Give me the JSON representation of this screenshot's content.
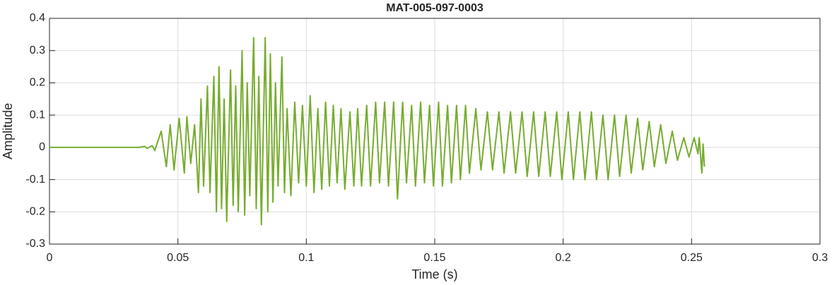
{
  "chart_data": {
    "type": "line",
    "title": "MAT-005-097-0003",
    "x_label": "Time (s)",
    "y_label": "Amplitude",
    "color": "#77ac30",
    "grid": true,
    "xlim": [
      0,
      0.3
    ],
    "xticks": [
      0,
      0.05,
      0.1,
      0.15,
      0.2,
      0.25,
      0.3
    ],
    "ylim": [
      -0.3,
      0.4
    ],
    "yticks": [
      -0.3,
      -0.2,
      -0.1,
      0,
      0.1,
      0.2,
      0.3,
      0.4
    ],
    "x": [
      0,
      0.035,
      0.037,
      0.038,
      0.04,
      0.041,
      0.0435,
      0.0455,
      0.047,
      0.0485,
      0.0505,
      0.0525,
      0.0535,
      0.055,
      0.0565,
      0.058,
      0.059,
      0.06,
      0.0615,
      0.0625,
      0.064,
      0.065,
      0.066,
      0.067,
      0.068,
      0.069,
      0.0705,
      0.0715,
      0.0725,
      0.0735,
      0.075,
      0.076,
      0.077,
      0.078,
      0.0795,
      0.0805,
      0.0815,
      0.0825,
      0.084,
      0.085,
      0.086,
      0.087,
      0.088,
      0.089,
      0.0905,
      0.0915,
      0.0925,
      0.094,
      0.0955,
      0.097,
      0.0985,
      0.1,
      0.1015,
      0.103,
      0.1045,
      0.106,
      0.1075,
      0.109,
      0.1105,
      0.112,
      0.1135,
      0.115,
      0.117,
      0.1185,
      0.12,
      0.1215,
      0.1235,
      0.125,
      0.127,
      0.1285,
      0.1305,
      0.132,
      0.134,
      0.1355,
      0.1375,
      0.139,
      0.141,
      0.1425,
      0.1445,
      0.146,
      0.148,
      0.1495,
      0.1515,
      0.153,
      0.155,
      0.1565,
      0.1585,
      0.16,
      0.162,
      0.1635,
      0.166,
      0.168,
      0.1705,
      0.1725,
      0.175,
      0.177,
      0.1795,
      0.1815,
      0.184,
      0.186,
      0.1885,
      0.1905,
      0.193,
      0.195,
      0.1975,
      0.1995,
      0.202,
      0.204,
      0.2065,
      0.2085,
      0.211,
      0.213,
      0.2155,
      0.2175,
      0.22,
      0.222,
      0.2245,
      0.2265,
      0.229,
      0.231,
      0.2335,
      0.2355,
      0.238,
      0.24,
      0.2425,
      0.2445,
      0.247,
      0.249,
      0.251,
      0.2525,
      0.253,
      0.254,
      0.2545,
      0.255
    ],
    "values": [
      0,
      0,
      0.003,
      -0.003,
      0.005,
      -0.01,
      0.05,
      -0.06,
      0.07,
      -0.07,
      0.09,
      -0.08,
      0.095,
      -0.05,
      0.07,
      -0.14,
      0.15,
      -0.12,
      0.19,
      -0.14,
      0.22,
      -0.2,
      0.25,
      -0.19,
      0.15,
      -0.23,
      0.24,
      -0.18,
      0.19,
      -0.2,
      0.3,
      -0.21,
      0.2,
      -0.15,
      0.34,
      -0.19,
      0.22,
      -0.24,
      0.34,
      -0.2,
      0.29,
      -0.17,
      0.2,
      -0.12,
      0.28,
      -0.14,
      0.12,
      -0.15,
      0.14,
      -0.11,
      0.13,
      -0.12,
      0.16,
      -0.14,
      0.12,
      -0.13,
      0.14,
      -0.12,
      0.13,
      -0.11,
      0.12,
      -0.13,
      0.11,
      -0.12,
      0.12,
      -0.12,
      0.13,
      -0.12,
      0.14,
      -0.11,
      0.14,
      -0.12,
      0.14,
      -0.16,
      0.14,
      -0.11,
      0.13,
      -0.12,
      0.14,
      -0.11,
      0.13,
      -0.12,
      0.14,
      -0.12,
      0.13,
      -0.11,
      0.13,
      -0.1,
      0.13,
      -0.08,
      0.12,
      -0.07,
      0.11,
      -0.07,
      0.11,
      -0.08,
      0.11,
      -0.08,
      0.11,
      -0.09,
      0.11,
      -0.09,
      0.11,
      -0.09,
      0.11,
      -0.1,
      0.11,
      -0.1,
      0.11,
      -0.1,
      0.11,
      -0.1,
      0.1,
      -0.1,
      0.1,
      -0.09,
      0.1,
      -0.08,
      0.09,
      -0.07,
      0.08,
      -0.06,
      0.07,
      -0.05,
      0.05,
      -0.04,
      0.03,
      -0.03,
      0.03,
      -0.02,
      0.03,
      -0.08,
      0.01,
      -0.06
    ]
  }
}
